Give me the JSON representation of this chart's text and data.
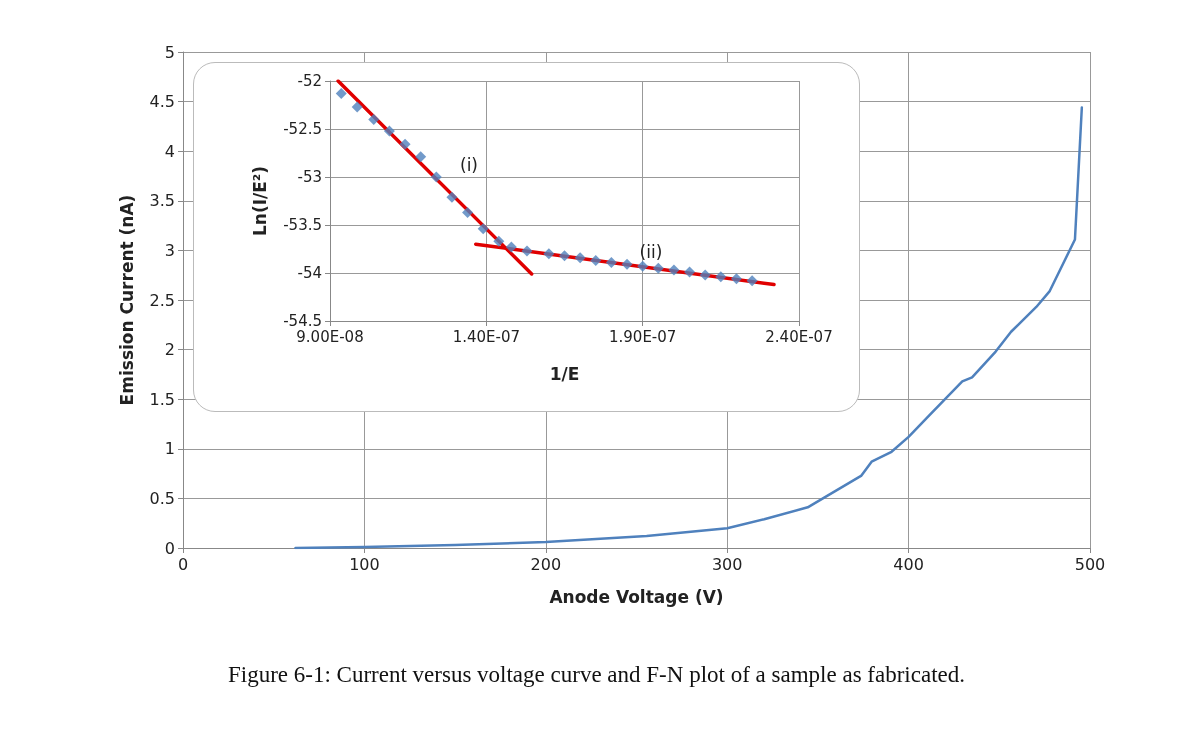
{
  "chart_data": [
    {
      "type": "line",
      "xlabel": "Anode Voltage (V)",
      "ylabel": "Emission Current (nA)",
      "annotations": [
        "Figure 6-1: Current versus voltage curve and F-N plot of a sample as fabricated."
      ],
      "series": [
        {
          "color": "#4f81bd",
          "x": [
            62,
            100,
            150,
            200,
            255.6,
            300,
            320.4,
            344.4,
            353.7,
            374,
            379.6,
            390.6,
            400,
            411,
            429.6,
            435,
            448,
            456.5,
            470.4,
            477.8,
            491.7,
            495.5
          ],
          "values": [
            0,
            0.01,
            0.03,
            0.06,
            0.12,
            0.2,
            0.29,
            0.41,
            0.51,
            0.73,
            0.87,
            0.97,
            1.12,
            1.33,
            1.68,
            1.72,
            1.98,
            2.18,
            2.43,
            2.59,
            3.11,
            4.44
          ]
        }
      ],
      "xlim": [
        0,
        500
      ],
      "xticks": [
        0,
        100,
        200,
        300,
        400,
        500
      ],
      "ylim": [
        0,
        5
      ],
      "yticks": [
        0,
        0.5,
        1,
        1.5,
        2,
        2.5,
        3,
        3.5,
        4,
        4.5,
        5
      ],
      "grid": true,
      "marker": "none",
      "line_style": "solid"
    },
    {
      "type": "scatter",
      "xlabel": "1/E",
      "ylabel": "Ln(I/E²)",
      "annotations": [
        "(i)",
        "(ii)"
      ],
      "series": [
        {
          "color": "#4f81bd",
          "marker": "diamond",
          "x": [
            9.36e-08,
            9.87e-08,
            1.04e-07,
            1.09e-07,
            1.14e-07,
            1.19e-07,
            1.24e-07,
            1.29e-07,
            1.34e-07,
            1.39e-07,
            1.44e-07,
            1.48e-07,
            1.53e-07,
            1.6e-07,
            1.65e-07,
            1.7e-07,
            1.75e-07,
            1.8e-07,
            1.85e-07,
            1.9e-07,
            1.95e-07,
            2e-07,
            2.05e-07,
            2.1e-07,
            2.15e-07,
            2.2e-07,
            2.25e-07
          ],
          "values": [
            -52.13,
            -52.27,
            -52.4,
            -52.52,
            -52.66,
            -52.79,
            -53.0,
            -53.21,
            -53.37,
            -53.54,
            -53.67,
            -53.73,
            -53.77,
            -53.8,
            -53.82,
            -53.84,
            -53.87,
            -53.89,
            -53.91,
            -53.93,
            -53.95,
            -53.97,
            -53.99,
            -54.02,
            -54.04,
            -54.06,
            -54.08
          ]
        },
        {
          "type": "line",
          "color": "#e00000",
          "marker": "none",
          "x": [
            9.26e-08,
            1.545e-07
          ],
          "values": [
            -52.0,
            -54.01
          ]
        },
        {
          "type": "line",
          "color": "#e00000",
          "marker": "none",
          "x": [
            1.366e-07,
            2.32e-07
          ],
          "values": [
            -53.7,
            -54.12
          ]
        }
      ],
      "xlim": [
        9e-08,
        2.4e-07
      ],
      "xticks": [
        {
          "value": 9e-08,
          "label": "9.00E-08"
        },
        {
          "value": 1.4e-07,
          "label": "1.40E-07"
        },
        {
          "value": 1.9e-07,
          "label": "1.90E-07"
        },
        {
          "value": 2.4e-07,
          "label": "2.40E-07"
        }
      ],
      "ylim": [
        -54.5,
        -52
      ],
      "yticks": [
        -54.5,
        -54,
        -53.5,
        -53,
        -52.5,
        -52
      ],
      "grid": true,
      "line_style": "solid"
    }
  ]
}
